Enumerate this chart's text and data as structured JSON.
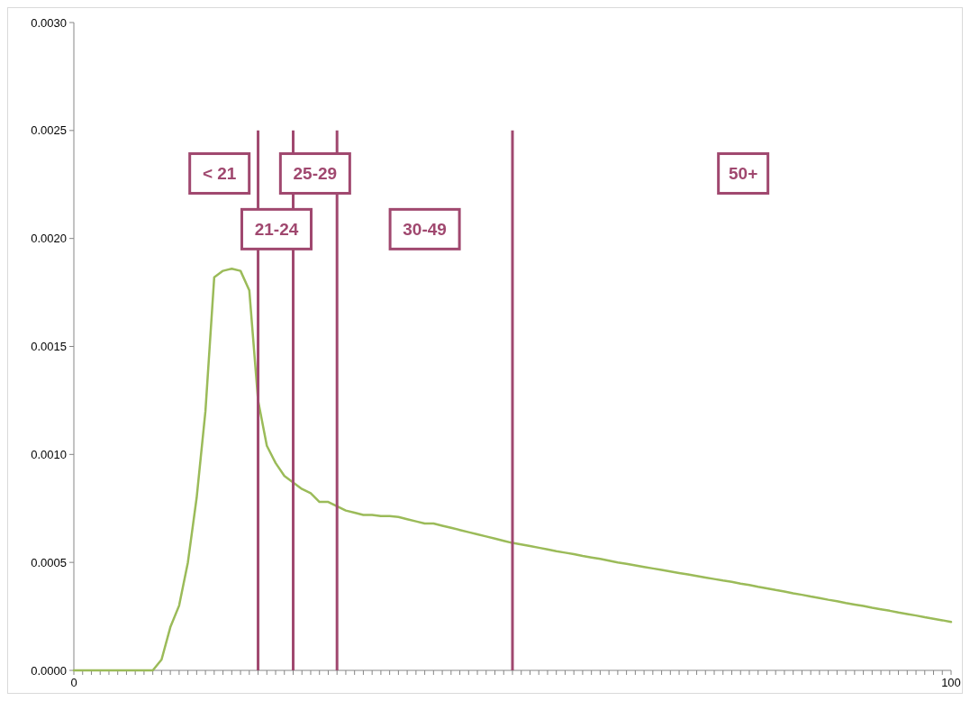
{
  "chart_data": {
    "type": "line",
    "x": [
      0,
      1,
      2,
      3,
      4,
      5,
      6,
      7,
      8,
      9,
      10,
      11,
      12,
      13,
      14,
      15,
      16,
      17,
      18,
      19,
      20,
      21,
      22,
      23,
      24,
      25,
      26,
      27,
      28,
      29,
      30,
      31,
      32,
      33,
      34,
      35,
      36,
      37,
      38,
      39,
      40,
      41,
      42,
      43,
      44,
      45,
      46,
      47,
      48,
      49,
      50,
      51,
      52,
      53,
      54,
      55,
      56,
      57,
      58,
      59,
      60,
      61,
      62,
      63,
      64,
      65,
      66,
      67,
      68,
      69,
      70,
      71,
      72,
      73,
      74,
      75,
      76,
      77,
      78,
      79,
      80,
      81,
      82,
      83,
      84,
      85,
      86,
      87,
      88,
      89,
      90,
      91,
      92,
      93,
      94,
      95,
      96,
      97,
      98,
      99,
      100
    ],
    "series": [
      {
        "color": "#9bbb59",
        "values": [
          0,
          0,
          0,
          0,
          0,
          0,
          0,
          0,
          0,
          0,
          5e-05,
          0.0002,
          0.0003,
          0.0005,
          0.0008,
          0.0012,
          0.00182,
          0.00185,
          0.00186,
          0.00185,
          0.00176,
          0.00125,
          0.00104,
          0.00096,
          0.0009,
          0.00087,
          0.00084,
          0.00082,
          0.00078,
          0.00078,
          0.00076,
          0.00074,
          0.00073,
          0.00072,
          0.00072,
          0.000715,
          0.000715,
          0.00071,
          0.0007,
          0.00069,
          0.00068,
          0.00068,
          0.00067,
          0.00066,
          0.00065,
          0.00064,
          0.00063,
          0.00062,
          0.00061,
          0.0006,
          0.00059,
          0.000583,
          0.000576,
          0.000568,
          0.00056,
          0.000552,
          0.000545,
          0.000538,
          0.00053,
          0.000523,
          0.000516,
          0.000508,
          0.0005,
          0.000493,
          0.000486,
          0.000479,
          0.000472,
          0.000465,
          0.000458,
          0.000451,
          0.000444,
          0.000437,
          0.00043,
          0.000423,
          0.000416,
          0.00041,
          0.000402,
          0.000395,
          0.000387,
          0.00038,
          0.000372,
          0.000365,
          0.000357,
          0.00035,
          0.000342,
          0.000335,
          0.000327,
          0.00032,
          0.000312,
          0.000305,
          0.000298,
          0.00029,
          0.000283,
          0.000276,
          0.000268,
          0.000261,
          0.000254,
          0.000246,
          0.000239,
          0.000232,
          0.000224
        ]
      }
    ],
    "xlim": [
      0,
      100
    ],
    "xticks": [
      0,
      {
        "value": 1,
        "label": null
      },
      {
        "value": 2,
        "label": null
      },
      {
        "value": 3,
        "label": null
      },
      {
        "value": 4,
        "label": null
      },
      {
        "value": 5,
        "label": null
      },
      {
        "value": 6,
        "label": null
      },
      {
        "value": 7,
        "label": null
      },
      {
        "value": 8,
        "label": null
      },
      {
        "value": 9,
        "label": null
      },
      {
        "value": 10,
        "label": null
      },
      {
        "value": 11,
        "label": null
      },
      {
        "value": 12,
        "label": null
      },
      {
        "value": 13,
        "label": null
      },
      {
        "value": 14,
        "label": null
      },
      {
        "value": 15,
        "label": null
      },
      {
        "value": 16,
        "label": null
      },
      {
        "value": 17,
        "label": null
      },
      {
        "value": 18,
        "label": null
      },
      {
        "value": 19,
        "label": null
      },
      {
        "value": 20,
        "label": null
      },
      {
        "value": 21,
        "label": null
      },
      {
        "value": 22,
        "label": null
      },
      {
        "value": 23,
        "label": null
      },
      {
        "value": 24,
        "label": null
      },
      {
        "value": 25,
        "label": null
      },
      {
        "value": 26,
        "label": null
      },
      {
        "value": 27,
        "label": null
      },
      {
        "value": 28,
        "label": null
      },
      {
        "value": 29,
        "label": null
      },
      {
        "value": 30,
        "label": null
      },
      {
        "value": 31,
        "label": null
      },
      {
        "value": 32,
        "label": null
      },
      {
        "value": 33,
        "label": null
      },
      {
        "value": 34,
        "label": null
      },
      {
        "value": 35,
        "label": null
      },
      {
        "value": 36,
        "label": null
      },
      {
        "value": 37,
        "label": null
      },
      {
        "value": 38,
        "label": null
      },
      {
        "value": 39,
        "label": null
      },
      {
        "value": 40,
        "label": null
      },
      {
        "value": 41,
        "label": null
      },
      {
        "value": 42,
        "label": null
      },
      {
        "value": 43,
        "label": null
      },
      {
        "value": 44,
        "label": null
      },
      {
        "value": 45,
        "label": null
      },
      {
        "value": 46,
        "label": null
      },
      {
        "value": 47,
        "label": null
      },
      {
        "value": 48,
        "label": null
      },
      {
        "value": 49,
        "label": null
      },
      {
        "value": 50,
        "label": null
      },
      {
        "value": 51,
        "label": null
      },
      {
        "value": 52,
        "label": null
      },
      {
        "value": 53,
        "label": null
      },
      {
        "value": 54,
        "label": null
      },
      {
        "value": 55,
        "label": null
      },
      {
        "value": 56,
        "label": null
      },
      {
        "value": 57,
        "label": null
      },
      {
        "value": 58,
        "label": null
      },
      {
        "value": 59,
        "label": null
      },
      {
        "value": 60,
        "label": null
      },
      {
        "value": 61,
        "label": null
      },
      {
        "value": 62,
        "label": null
      },
      {
        "value": 63,
        "label": null
      },
      {
        "value": 64,
        "label": null
      },
      {
        "value": 65,
        "label": null
      },
      {
        "value": 66,
        "label": null
      },
      {
        "value": 67,
        "label": null
      },
      {
        "value": 68,
        "label": null
      },
      {
        "value": 69,
        "label": null
      },
      {
        "value": 70,
        "label": null
      },
      {
        "value": 71,
        "label": null
      },
      {
        "value": 72,
        "label": null
      },
      {
        "value": 73,
        "label": null
      },
      {
        "value": 74,
        "label": null
      },
      {
        "value": 75,
        "label": null
      },
      {
        "value": 76,
        "label": null
      },
      {
        "value": 77,
        "label": null
      },
      {
        "value": 78,
        "label": null
      },
      {
        "value": 79,
        "label": null
      },
      {
        "value": 80,
        "label": null
      },
      {
        "value": 81,
        "label": null
      },
      {
        "value": 82,
        "label": null
      },
      {
        "value": 83,
        "label": null
      },
      {
        "value": 84,
        "label": null
      },
      {
        "value": 85,
        "label": null
      },
      {
        "value": 86,
        "label": null
      },
      {
        "value": 87,
        "label": null
      },
      {
        "value": 88,
        "label": null
      },
      {
        "value": 89,
        "label": null
      },
      {
        "value": 90,
        "label": null
      },
      {
        "value": 91,
        "label": null
      },
      {
        "value": 92,
        "label": null
      },
      {
        "value": 93,
        "label": null
      },
      {
        "value": 94,
        "label": null
      },
      {
        "value": 95,
        "label": null
      },
      {
        "value": 96,
        "label": null
      },
      {
        "value": 97,
        "label": null
      },
      {
        "value": 98,
        "label": null
      },
      {
        "value": 99,
        "label": null
      },
      100
    ],
    "ylim": [
      0,
      0.003
    ],
    "yticks": [
      {
        "value": 0,
        "label": "0.0000"
      },
      {
        "value": 0.0005,
        "label": "0.0005"
      },
      {
        "value": 0.001,
        "label": "0.0010"
      },
      {
        "value": 0.0015,
        "label": "0.0015"
      },
      {
        "value": 0.002,
        "label": "0.0020"
      },
      {
        "value": 0.0025,
        "label": "0.0025"
      },
      {
        "value": 0.003,
        "label": "0.0030"
      }
    ],
    "ref_lines": [
      {
        "axis": "x",
        "value": 21,
        "color": "#a0486f"
      },
      {
        "axis": "x",
        "value": 25,
        "color": "#a0486f"
      },
      {
        "axis": "x",
        "value": 30,
        "color": "#a0486f"
      },
      {
        "axis": "x",
        "value": 50,
        "color": "#a0486f"
      }
    ],
    "annotations": [
      "< 21",
      "21-24",
      "25-29",
      "30-49",
      "50+"
    ]
  }
}
